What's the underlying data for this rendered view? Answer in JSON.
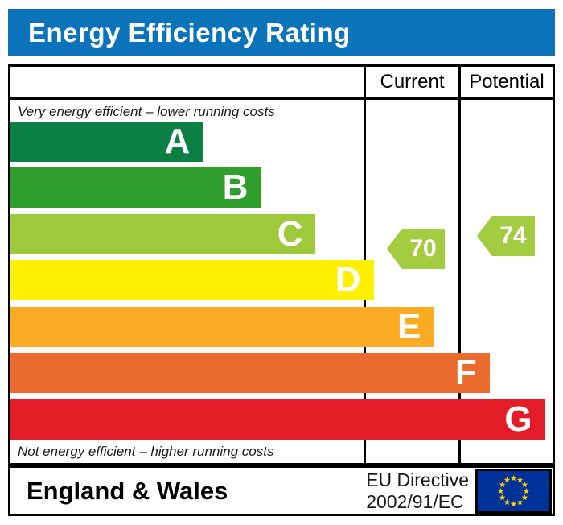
{
  "title": "Energy Efficiency Rating",
  "title_bar_color": "#0a73b9",
  "header": {
    "current": "Current",
    "potential": "Potential"
  },
  "notes": {
    "top": "Very energy efficient – lower running costs",
    "bottom": "Not energy efficient – higher running costs"
  },
  "chart_data": {
    "type": "bar",
    "title": "Energy Efficiency Rating",
    "categories": [
      "A",
      "B",
      "C",
      "D",
      "E",
      "F",
      "G"
    ],
    "band_colors": [
      "#0a8143",
      "#2f9e2c",
      "#9ec93b",
      "#fef000",
      "#fbab21",
      "#ea6b2d",
      "#e31d28"
    ],
    "band_widths_pct": [
      35.5,
      46.2,
      56.3,
      67.0,
      78.1,
      88.4,
      98.6
    ],
    "current": {
      "label": "Current",
      "value": 70,
      "band": "C",
      "arrow_color": "#a4cc40"
    },
    "potential": {
      "label": "Potential",
      "value": 74,
      "band": "C",
      "arrow_color": "#a4cc40"
    }
  },
  "footer": {
    "region": "England & Wales",
    "directive_line1": "EU Directive",
    "directive_line2": "2002/91/EC",
    "eu_flag": {
      "background": "#003399",
      "star_color": "#ffcc00",
      "star_count": 12
    }
  }
}
